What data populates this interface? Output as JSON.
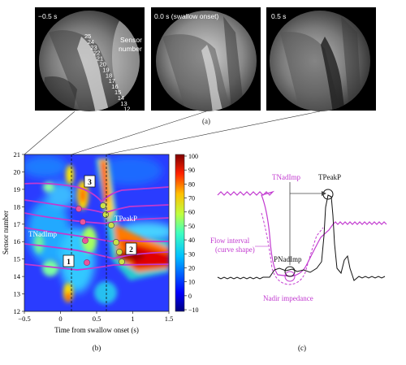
{
  "panel_a": {
    "frames": [
      {
        "time_label": "−0.5 s"
      },
      {
        "time_label": "0.0 s (swallow onset)"
      },
      {
        "time_label": "0.5 s"
      }
    ],
    "sensor_number_label": [
      "Sensor",
      "number"
    ],
    "sensor_numbers": [
      "25",
      "24",
      "23",
      "22",
      "21",
      "20",
      "19",
      "18",
      "17",
      "16",
      "15",
      "14",
      "13",
      "12"
    ],
    "caption": "(a)"
  },
  "panel_b": {
    "caption": "(b)",
    "xlabel": "Time from swallow onset (s)",
    "ylabel": "Sensor number",
    "x_ticks": [
      "−0.5",
      "0",
      "0.5",
      "1",
      "1.5"
    ],
    "y_ticks": [
      "12",
      "13",
      "14",
      "15",
      "16",
      "17",
      "18",
      "19",
      "20",
      "21"
    ],
    "colorbar_ticks": [
      "100",
      "90",
      "80",
      "70",
      "60",
      "50",
      "40",
      "30",
      "20",
      "10",
      "0",
      "−10"
    ],
    "annotations": {
      "tpeakp": "TPeakP",
      "tnadimp": "TNadImp"
    },
    "boxes": [
      "1",
      "2",
      "3"
    ]
  },
  "panel_c": {
    "caption": "(c)",
    "tnadimp": "TNadImp",
    "tpeakp": "TPeakP",
    "pnadimp": "PNadImp",
    "flow_interval": [
      "Flow interval",
      "(curve shape)"
    ],
    "nadir_impedance": "Nadir impedance"
  },
  "colors": {
    "magenta": "#c23ad0",
    "pink_dot": "#e9559a",
    "lime": "#c9e04a",
    "black": "#111111"
  }
}
